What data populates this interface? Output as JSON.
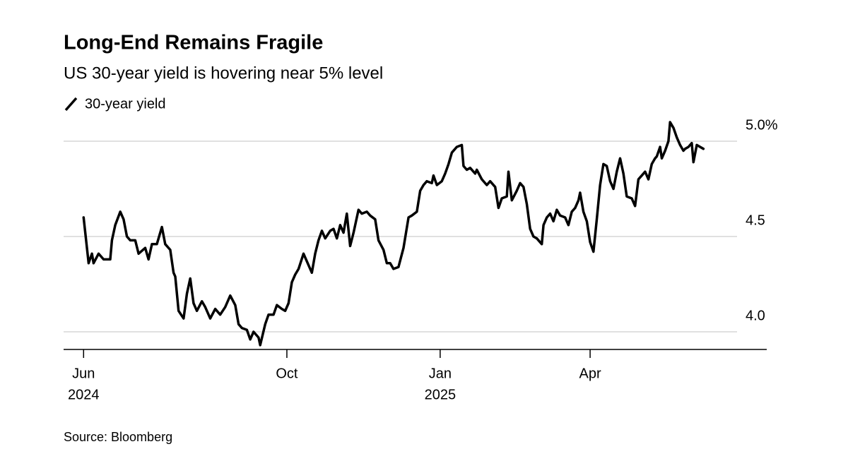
{
  "chart_data": {
    "type": "line",
    "title": "Long-End Remains Fragile",
    "subtitle": "US 30-year yield is hovering near 5% level",
    "source": "Source: Bloomberg",
    "xlim": [
      "2024-05-20",
      "2025-07-16"
    ],
    "xticks": [
      {
        "value": "2024-06",
        "label": "Jun",
        "year": "2024"
      },
      {
        "value": "2024-10",
        "label": "Oct"
      },
      {
        "value": "2025-01",
        "label": "Jan",
        "year": "2025"
      },
      {
        "value": "2025-04",
        "label": "Apr"
      }
    ],
    "ylim": [
      3.9,
      5.1
    ],
    "yticks": [
      {
        "value": 4,
        "label": "4.0"
      },
      {
        "value": 4.5,
        "label": "4.5"
      },
      {
        "value": 5,
        "label": "5.0%"
      }
    ],
    "grid": true,
    "x": [
      "2024-06-01",
      "2024-06-04",
      "2024-06-06",
      "2024-06-07",
      "2024-06-10",
      "2024-06-13",
      "2024-06-17",
      "2024-06-18",
      "2024-06-20",
      "2024-06-23",
      "2024-06-25",
      "2024-06-27",
      "2024-06-29",
      "2024-07-02",
      "2024-07-04",
      "2024-07-08",
      "2024-07-10",
      "2024-07-12",
      "2024-07-15",
      "2024-07-18",
      "2024-07-20",
      "2024-07-23",
      "2024-07-25",
      "2024-07-26",
      "2024-07-28",
      "2024-07-31",
      "2024-08-02",
      "2024-08-04",
      "2024-08-06",
      "2024-08-08",
      "2024-08-11",
      "2024-08-13",
      "2024-08-16",
      "2024-08-19",
      "2024-08-22",
      "2024-08-25",
      "2024-08-28",
      "2024-08-31",
      "2024-09-02",
      "2024-09-04",
      "2024-09-07",
      "2024-09-09",
      "2024-09-11",
      "2024-09-14",
      "2024-09-15",
      "2024-09-18",
      "2024-09-20",
      "2024-09-23",
      "2024-09-25",
      "2024-09-28",
      "2024-09-30",
      "2024-10-02",
      "2024-10-04",
      "2024-10-06",
      "2024-10-08",
      "2024-10-11",
      "2024-10-13",
      "2024-10-16",
      "2024-10-18",
      "2024-10-20",
      "2024-10-22",
      "2024-10-24",
      "2024-10-27",
      "2024-10-29",
      "2024-10-31",
      "2024-11-02",
      "2024-11-04",
      "2024-11-06",
      "2024-11-08",
      "2024-11-10",
      "2024-11-13",
      "2024-11-15",
      "2024-11-18",
      "2024-11-20",
      "2024-11-23",
      "2024-11-25",
      "2024-11-28",
      "2024-11-30",
      "2024-12-02",
      "2024-12-04",
      "2024-12-07",
      "2024-12-10",
      "2024-12-13",
      "2024-12-15",
      "2024-12-18",
      "2024-12-20",
      "2024-12-22",
      "2024-12-24",
      "2024-12-27",
      "2024-12-28",
      "2024-12-30",
      "2025-01-02",
      "2025-01-04",
      "2025-01-06",
      "2025-01-08",
      "2025-01-11",
      "2025-01-14",
      "2025-01-15",
      "2025-01-17",
      "2025-01-19",
      "2025-01-22",
      "2025-01-23",
      "2025-01-26",
      "2025-01-29",
      "2025-01-31",
      "2025-02-03",
      "2025-02-05",
      "2025-02-07",
      "2025-02-10",
      "2025-02-11",
      "2025-02-13",
      "2025-02-16",
      "2025-02-18",
      "2025-02-20",
      "2025-02-22",
      "2025-02-24",
      "2025-02-26",
      "2025-02-28",
      "2025-03-03",
      "2025-03-04",
      "2025-03-06",
      "2025-03-08",
      "2025-03-10",
      "2025-03-12",
      "2025-03-14",
      "2025-03-17",
      "2025-03-19",
      "2025-03-21",
      "2025-03-23",
      "2025-03-25",
      "2025-03-26",
      "2025-03-28",
      "2025-03-30",
      "2025-04-01",
      "2025-04-03",
      "2025-04-05",
      "2025-04-07",
      "2025-04-09",
      "2025-04-11",
      "2025-04-13",
      "2025-04-15",
      "2025-04-17",
      "2025-04-19",
      "2025-04-21",
      "2025-04-23",
      "2025-04-26",
      "2025-04-28",
      "2025-04-30",
      "2025-05-02",
      "2025-05-04",
      "2025-05-06",
      "2025-05-08",
      "2025-05-10",
      "2025-05-11",
      "2025-05-13",
      "2025-05-14",
      "2025-05-16",
      "2025-05-18",
      "2025-05-19",
      "2025-05-21",
      "2025-05-23",
      "2025-05-25",
      "2025-05-27",
      "2025-05-28",
      "2025-05-30",
      "2025-06-01",
      "2025-06-02",
      "2025-06-04",
      "2025-06-08"
    ],
    "series": [
      {
        "name": "30-year yield",
        "color": "#000000",
        "values": [
          4.6,
          4.36,
          4.41,
          4.36,
          4.41,
          4.38,
          4.38,
          4.48,
          4.56,
          4.63,
          4.59,
          4.5,
          4.48,
          4.48,
          4.41,
          4.44,
          4.38,
          4.46,
          4.46,
          4.55,
          4.46,
          4.43,
          4.31,
          4.29,
          4.11,
          4.07,
          4.2,
          4.28,
          4.15,
          4.11,
          4.16,
          4.13,
          4.07,
          4.12,
          4.09,
          4.13,
          4.19,
          4.14,
          4.04,
          4.02,
          4.01,
          3.96,
          4.0,
          3.97,
          3.93,
          4.04,
          4.09,
          4.09,
          4.14,
          4.12,
          4.11,
          4.15,
          4.26,
          4.3,
          4.33,
          4.41,
          4.37,
          4.31,
          4.41,
          4.48,
          4.53,
          4.49,
          4.53,
          4.54,
          4.49,
          4.56,
          4.52,
          4.62,
          4.45,
          4.52,
          4.64,
          4.62,
          4.63,
          4.61,
          4.59,
          4.48,
          4.43,
          4.36,
          4.36,
          4.33,
          4.34,
          4.44,
          4.6,
          4.61,
          4.63,
          4.74,
          4.77,
          4.79,
          4.78,
          4.82,
          4.77,
          4.79,
          4.83,
          4.88,
          4.94,
          4.97,
          4.98,
          4.87,
          4.85,
          4.86,
          4.83,
          4.85,
          4.8,
          4.77,
          4.79,
          4.76,
          4.65,
          4.7,
          4.71,
          4.84,
          4.69,
          4.74,
          4.78,
          4.76,
          4.67,
          4.54,
          4.5,
          4.49,
          4.46,
          4.56,
          4.6,
          4.62,
          4.58,
          4.64,
          4.61,
          4.6,
          4.56,
          4.63,
          4.65,
          4.69,
          4.73,
          4.63,
          4.58,
          4.47,
          4.42,
          4.59,
          4.77,
          4.88,
          4.87,
          4.79,
          4.75,
          4.84,
          4.91,
          4.83,
          4.71,
          4.7,
          4.66,
          4.8,
          4.82,
          4.84,
          4.8,
          4.88,
          4.91,
          4.92,
          4.97,
          4.91,
          4.95,
          5.0,
          5.1,
          5.07,
          5.02,
          4.98,
          4.95,
          4.96,
          4.97,
          4.99,
          4.89,
          4.98,
          4.96
        ]
      }
    ]
  }
}
